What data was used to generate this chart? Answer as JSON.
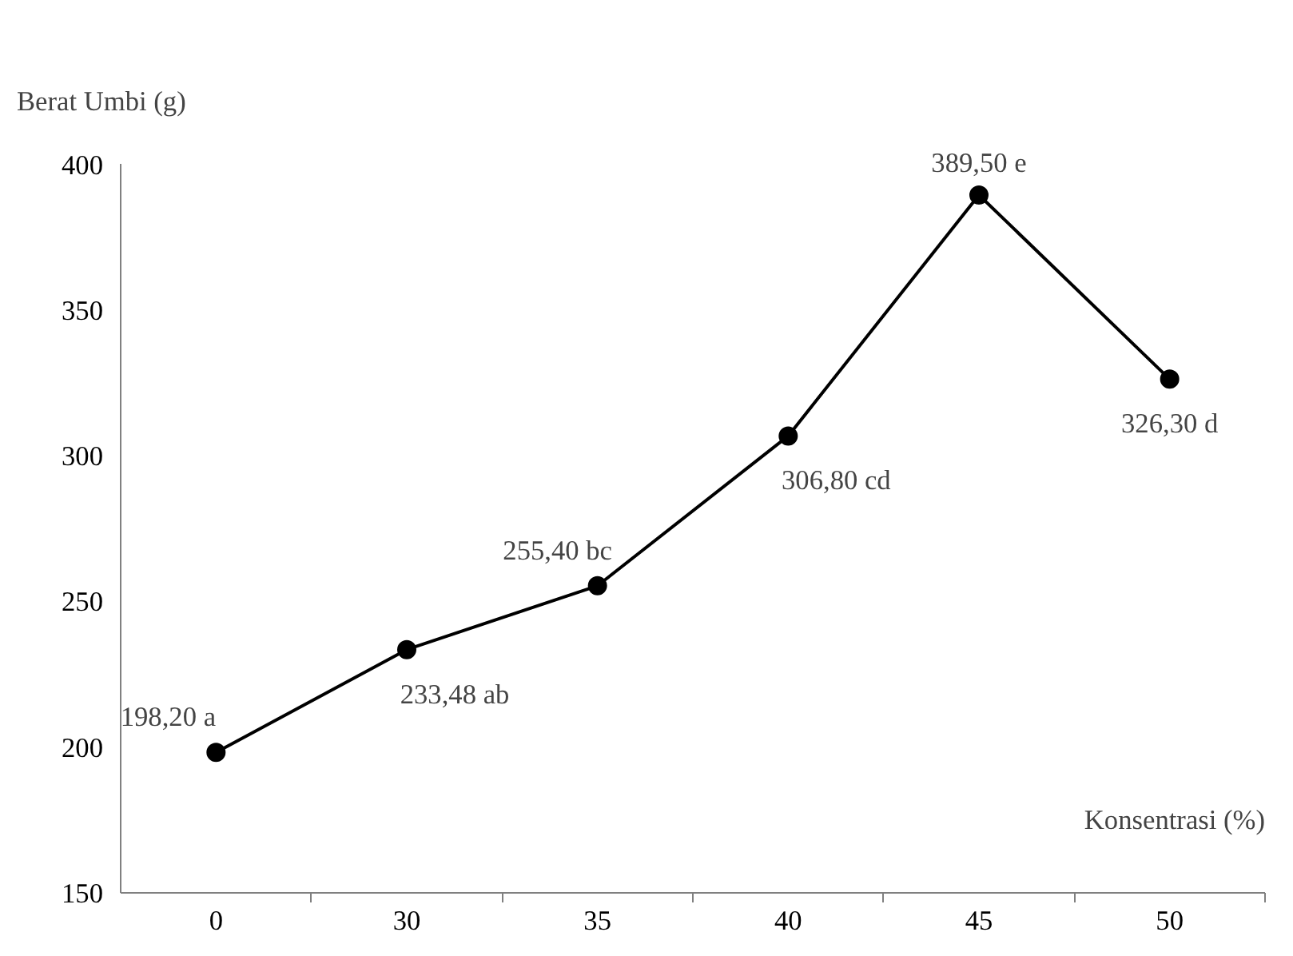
{
  "chart_data": {
    "type": "line",
    "ylabel": "Berat Umbi (g)",
    "xlabel": "Konsentrasi (%)",
    "categories": [
      "0",
      "30",
      "35",
      "40",
      "45",
      "50"
    ],
    "series": [
      {
        "color": "#000000",
        "values": [
          198.2,
          233.48,
          255.4,
          306.8,
          389.5,
          326.3
        ],
        "value_labels": [
          "198,20 a",
          "233,48 ab",
          "255,40 bc",
          "306,80 cd",
          "389,50 e",
          "326,30 d"
        ]
      }
    ],
    "ylim": [
      150,
      400
    ],
    "yticks": [
      150,
      200,
      250,
      300,
      350,
      400
    ],
    "grid": false,
    "marker": "circle",
    "line_style": "solid"
  }
}
